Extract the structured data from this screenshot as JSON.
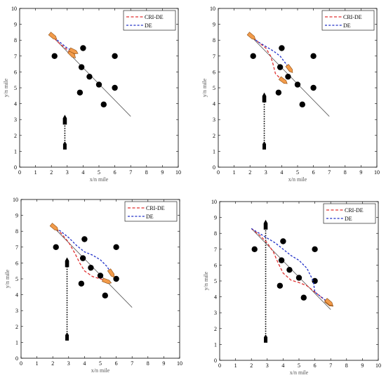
{
  "chart_data": [
    {
      "type": "line",
      "xlabel": "x/n mile",
      "ylabel": "y/n mile",
      "xlim": [
        0,
        10
      ],
      "ylim": [
        0,
        10
      ],
      "xticks": [
        "0",
        "1",
        "2",
        "3",
        "4",
        "5",
        "6",
        "7",
        "8",
        "9",
        "10"
      ],
      "yticks": [
        "0",
        "1",
        "2",
        "3",
        "4",
        "5",
        "6",
        "7",
        "8",
        "9",
        "10"
      ],
      "grid": false,
      "legend_position": "top-right",
      "legend": [
        "CRI-DE",
        "DE"
      ],
      "colors": {
        "CRI-DE": "#e03030",
        "DE": "#2030c8",
        "obstacle": "#000000",
        "reference": "#555555",
        "ship": "#f29b4a"
      },
      "reference_line": {
        "x": [
          2.0,
          7.0
        ],
        "y": [
          8.3,
          3.2
        ]
      },
      "obstacles": {
        "x": [
          2.2,
          4.0,
          6.0,
          3.9,
          4.4,
          5.0,
          3.8,
          6.0,
          5.3
        ],
        "y": [
          7.0,
          7.5,
          7.0,
          6.3,
          5.7,
          5.2,
          4.7,
          5.0,
          3.95
        ]
      },
      "series": [
        {
          "name": "CRI-DE",
          "x": [
            2.0,
            2.5,
            3.0,
            3.3
          ],
          "y": [
            8.3,
            7.8,
            7.4,
            7.1
          ]
        },
        {
          "name": "DE",
          "x": [
            2.0,
            2.5,
            3.0,
            3.4
          ],
          "y": [
            8.3,
            7.9,
            7.5,
            7.3
          ]
        }
      ],
      "own_ship": {
        "x": 2.1,
        "y": 8.25
      },
      "target_ship": {
        "x": 2.85,
        "path_y": [
          1.2,
          3.0
        ],
        "position_y": 2.95
      }
    },
    {
      "type": "line",
      "xlabel": "x/n mile",
      "ylabel": "y/n mile",
      "xlim": [
        0,
        10
      ],
      "ylim": [
        0,
        10
      ],
      "xticks": [
        "0",
        "1",
        "2",
        "3",
        "4",
        "5",
        "6",
        "7",
        "8",
        "9",
        "10"
      ],
      "yticks": [
        "0",
        "1",
        "2",
        "3",
        "4",
        "5",
        "6",
        "7",
        "8",
        "9",
        "10"
      ],
      "grid": false,
      "legend_position": "top-right",
      "legend": [
        "CRI-DE",
        "DE"
      ],
      "colors": {
        "CRI-DE": "#e03030",
        "DE": "#2030c8",
        "obstacle": "#000000",
        "reference": "#555555",
        "ship": "#f29b4a"
      },
      "reference_line": {
        "x": [
          2.0,
          7.0
        ],
        "y": [
          8.3,
          3.2
        ]
      },
      "obstacles": {
        "x": [
          2.2,
          4.0,
          6.0,
          3.9,
          4.4,
          5.0,
          3.8,
          6.0,
          5.3
        ],
        "y": [
          7.0,
          7.5,
          7.0,
          6.3,
          5.7,
          5.2,
          4.7,
          5.0,
          3.95
        ]
      },
      "series": [
        {
          "name": "CRI-DE",
          "x": [
            2.0,
            2.5,
            3.0,
            3.3,
            3.45,
            3.6,
            3.9,
            4.1
          ],
          "y": [
            8.3,
            7.9,
            7.5,
            7.0,
            6.5,
            5.9,
            5.6,
            5.45
          ]
        },
        {
          "name": "DE",
          "x": [
            2.0,
            2.5,
            3.0,
            3.5,
            3.9,
            4.2,
            4.5
          ],
          "y": [
            8.3,
            7.9,
            7.6,
            7.3,
            7.0,
            6.6,
            6.2
          ]
        }
      ],
      "own_ship": {
        "x": 2.1,
        "y": 8.25
      },
      "target_ship": {
        "x": 2.9,
        "path_y": [
          1.2,
          4.4
        ],
        "position_y": 4.35
      }
    },
    {
      "type": "line",
      "xlabel": "x/n mile",
      "ylabel": "y/n mile",
      "xlim": [
        0,
        10
      ],
      "ylim": [
        0,
        10
      ],
      "xticks": [
        "0",
        "1",
        "2",
        "3",
        "4",
        "5",
        "6",
        "7",
        "8",
        "9",
        "10"
      ],
      "yticks": [
        "0",
        "1",
        "2",
        "3",
        "4",
        "5",
        "6",
        "7",
        "8",
        "9",
        "10"
      ],
      "grid": false,
      "legend_position": "top-right",
      "legend": [
        "CRI-DE",
        "DE"
      ],
      "colors": {
        "CRI-DE": "#e03030",
        "DE": "#2030c8",
        "obstacle": "#000000",
        "reference": "#555555",
        "ship": "#f29b4a"
      },
      "reference_line": {
        "x": [
          2.0,
          7.0
        ],
        "y": [
          8.3,
          3.2
        ]
      },
      "obstacles": {
        "x": [
          2.2,
          4.0,
          6.0,
          3.9,
          4.4,
          5.0,
          3.8,
          6.0,
          5.3
        ],
        "y": [
          7.0,
          7.5,
          7.0,
          6.3,
          5.7,
          5.2,
          4.7,
          5.0,
          3.95
        ]
      },
      "series": [
        {
          "name": "CRI-DE",
          "x": [
            2.0,
            2.5,
            3.0,
            3.4,
            3.7,
            4.0,
            4.5,
            5.0,
            5.4
          ],
          "y": [
            8.3,
            7.9,
            7.3,
            6.6,
            6.0,
            5.5,
            5.15,
            5.0,
            4.85
          ]
        },
        {
          "name": "DE",
          "x": [
            2.0,
            2.5,
            3.0,
            3.5,
            4.0,
            4.5,
            5.0,
            5.4,
            5.7
          ],
          "y": [
            8.3,
            8.0,
            7.6,
            7.1,
            6.7,
            6.5,
            6.2,
            5.8,
            5.35
          ]
        }
      ],
      "own_ship": {
        "x": 2.1,
        "y": 8.25
      },
      "target_ship": {
        "x": 2.9,
        "path_y": [
          1.2,
          6.1
        ],
        "position_y": 6.0
      }
    },
    {
      "type": "line",
      "xlabel": "x/n mile",
      "ylabel": "y/n mile",
      "xlim": [
        0,
        10
      ],
      "ylim": [
        0,
        10
      ],
      "xticks": [
        "0",
        "1",
        "2",
        "3",
        "4",
        "5",
        "6",
        "7",
        "8",
        "9",
        "10"
      ],
      "yticks": [
        "0",
        "1",
        "2",
        "3",
        "4",
        "5",
        "6",
        "7",
        "8",
        "9",
        "10"
      ],
      "grid": false,
      "legend_position": "top-right",
      "legend": [
        "CRI-DE",
        "DE"
      ],
      "colors": {
        "CRI-DE": "#e03030",
        "DE": "#2030c8",
        "obstacle": "#000000",
        "reference": "#555555",
        "ship": "#f29b4a"
      },
      "reference_line": {
        "x": [
          2.0,
          7.0
        ],
        "y": [
          8.3,
          3.2
        ]
      },
      "obstacles": {
        "x": [
          2.2,
          4.0,
          6.0,
          3.9,
          4.4,
          5.0,
          3.8,
          6.0,
          5.3
        ],
        "y": [
          7.0,
          7.5,
          7.0,
          6.3,
          5.7,
          5.2,
          4.7,
          5.0,
          3.95
        ]
      },
      "series": [
        {
          "name": "CRI-DE",
          "x": [
            2.0,
            2.5,
            3.0,
            3.4,
            3.7,
            4.0,
            4.5,
            5.0,
            5.5,
            6.0,
            6.5,
            6.9
          ],
          "y": [
            8.3,
            7.9,
            7.4,
            6.8,
            6.1,
            5.5,
            5.05,
            4.9,
            4.7,
            4.3,
            3.9,
            3.6
          ]
        },
        {
          "name": "DE",
          "x": [
            2.0,
            2.5,
            3.0,
            3.5,
            4.0,
            4.5,
            5.0,
            5.5,
            5.9,
            6.0,
            6.4,
            6.9
          ],
          "y": [
            8.3,
            8.0,
            7.7,
            7.4,
            7.0,
            6.6,
            6.3,
            5.8,
            5.0,
            4.3,
            4.0,
            3.6
          ]
        }
      ],
      "own_ship": {
        "x": 6.9,
        "y": 3.65
      },
      "target_ship": {
        "x": 2.9,
        "path_y": [
          1.2,
          8.6
        ],
        "position_y": 8.5
      }
    }
  ]
}
